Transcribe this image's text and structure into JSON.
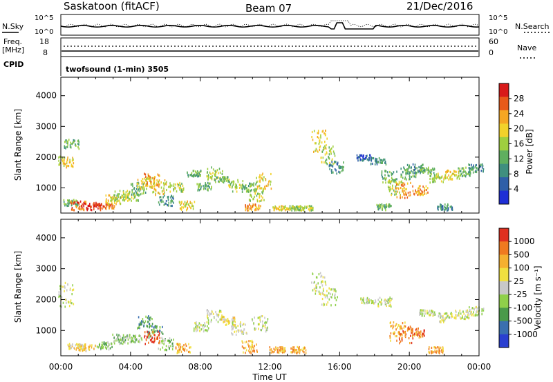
{
  "header": {
    "station": "Saskatoon (fitACF)",
    "beam": "Beam 07",
    "date": "21/Dec/2016"
  },
  "noise_panel": {
    "left_label": "N.Sky",
    "right_label": "N.Search",
    "left_ticks": [
      "10^5",
      "10^0"
    ],
    "right_ticks": [
      "10^5",
      "10^0"
    ]
  },
  "freq_panel": {
    "left_label_line1": "Freq.",
    "left_label_line2": "[MHz]",
    "left_ticks": [
      "18",
      "8"
    ],
    "right_label": "Nave",
    "right_ticks": [
      "60",
      "0"
    ],
    "cpid_label": "CPID"
  },
  "cpid_text": "twofsound (1-min) 3505",
  "colors": {
    "power_scale": [
      "#1f2fd6",
      "#2f5fa8",
      "#3f8f7f",
      "#5faf5f",
      "#9fcf3f",
      "#f2d22a",
      "#f5a623",
      "#e85a1a",
      "#d81a1a"
    ],
    "velocity_scale": [
      "#2a3fd0",
      "#3a6fb0",
      "#4a9a4a",
      "#8fd04a",
      "#c8c8c8",
      "#f0e040",
      "#f5b030",
      "#f07a20",
      "#e03020"
    ]
  },
  "chart_data": [
    {
      "type": "heatmap",
      "panel": "power",
      "xlabel": "",
      "ylabel": "Slant Range [km]",
      "xlim_hours": [
        0,
        24
      ],
      "ylim": [
        180,
        4600
      ],
      "y_ticks": [
        1000,
        2000,
        3000,
        4000
      ],
      "colorbar_label": "Power [dB]",
      "colorbar_ticks": [
        "28",
        "24",
        "20",
        "16",
        "12",
        "8",
        "4"
      ],
      "cells": [
        [
          0.3,
          1700,
          2050,
          5
        ],
        [
          0.6,
          2300,
          2600,
          3
        ],
        [
          0.5,
          450,
          650,
          3
        ],
        [
          1.0,
          300,
          600,
          7
        ],
        [
          1.8,
          300,
          550,
          8
        ],
        [
          2.6,
          350,
          520,
          7
        ],
        [
          3.0,
          500,
          800,
          5
        ],
        [
          3.5,
          600,
          950,
          4
        ],
        [
          4.0,
          600,
          900,
          4
        ],
        [
          4.4,
          800,
          1200,
          3
        ],
        [
          4.8,
          1000,
          1400,
          5
        ],
        [
          5.2,
          1100,
          1500,
          6
        ],
        [
          5.6,
          800,
          1300,
          5
        ],
        [
          6.0,
          400,
          800,
          2
        ],
        [
          6.6,
          900,
          1200,
          4
        ],
        [
          7.2,
          300,
          600,
          5
        ],
        [
          7.6,
          1400,
          1600,
          3
        ],
        [
          8.2,
          950,
          1200,
          3
        ],
        [
          8.8,
          1300,
          1700,
          4
        ],
        [
          9.2,
          1200,
          1400,
          3
        ],
        [
          10.0,
          900,
          1300,
          4
        ],
        [
          10.8,
          900,
          1200,
          3
        ],
        [
          11.2,
          600,
          1000,
          4
        ],
        [
          11.6,
          1000,
          1500,
          5
        ],
        [
          11.0,
          300,
          500,
          6
        ],
        [
          12.6,
          300,
          450,
          5
        ],
        [
          13.5,
          300,
          450,
          4
        ],
        [
          14.0,
          300,
          450,
          4
        ],
        [
          14.8,
          2200,
          2900,
          5
        ],
        [
          15.3,
          1800,
          2400,
          4
        ],
        [
          15.8,
          1500,
          1900,
          2
        ],
        [
          17.4,
          1900,
          2100,
          1
        ],
        [
          18.2,
          1800,
          2000,
          2
        ],
        [
          18.8,
          1200,
          1600,
          3
        ],
        [
          19.2,
          800,
          1300,
          4
        ],
        [
          19.6,
          700,
          1200,
          6
        ],
        [
          19.9,
          1300,
          1700,
          3
        ],
        [
          20.3,
          1500,
          1800,
          2
        ],
        [
          20.6,
          800,
          1100,
          6
        ],
        [
          21.0,
          1500,
          1700,
          3
        ],
        [
          21.6,
          1200,
          1500,
          4
        ],
        [
          22.4,
          1300,
          1600,
          5
        ],
        [
          23.2,
          1400,
          1700,
          3
        ],
        [
          23.8,
          1500,
          1800,
          2
        ],
        [
          18.5,
          300,
          500,
          3
        ],
        [
          22.0,
          300,
          500,
          2
        ]
      ]
    },
    {
      "type": "heatmap",
      "panel": "velocity",
      "xlabel": "Time UT",
      "ylabel": "Slant Range [km]",
      "xlim_hours": [
        0,
        24
      ],
      "ylim": [
        180,
        4600
      ],
      "x_ticks": [
        "00:00",
        "04:00",
        "08:00",
        "12:00",
        "16:00",
        "20:00",
        "00:00"
      ],
      "y_ticks": [
        1000,
        2000,
        3000,
        4000
      ],
      "colorbar_label": "Velocity [m s⁻¹]",
      "colorbar_ticks": [
        "1000",
        "500",
        "100",
        "25",
        "-25",
        "-100",
        "-500",
        "-1000"
      ],
      "cells": [
        [
          0.3,
          1800,
          2600,
          4
        ],
        [
          0.8,
          400,
          600,
          5
        ],
        [
          1.5,
          350,
          600,
          5
        ],
        [
          2.5,
          400,
          650,
          3
        ],
        [
          3.4,
          600,
          900,
          3
        ],
        [
          4.2,
          650,
          900,
          3
        ],
        [
          4.8,
          1100,
          1500,
          2
        ],
        [
          5.4,
          800,
          1200,
          2
        ],
        [
          6.0,
          400,
          800,
          3
        ],
        [
          7.0,
          300,
          600,
          6
        ],
        [
          8.0,
          1000,
          1300,
          4
        ],
        [
          8.8,
          1300,
          1700,
          4
        ],
        [
          9.6,
          1200,
          1500,
          5
        ],
        [
          10.2,
          900,
          1300,
          4
        ],
        [
          10.8,
          300,
          700,
          6
        ],
        [
          11.4,
          1000,
          1500,
          4
        ],
        [
          12.4,
          300,
          500,
          6
        ],
        [
          13.6,
          300,
          500,
          6
        ],
        [
          14.8,
          2200,
          2900,
          4
        ],
        [
          15.4,
          1800,
          2400,
          4
        ],
        [
          17.6,
          1900,
          2100,
          4
        ],
        [
          18.6,
          1800,
          2100,
          4
        ],
        [
          19.3,
          700,
          1300,
          6
        ],
        [
          19.8,
          600,
          1200,
          7
        ],
        [
          20.4,
          800,
          1100,
          7
        ],
        [
          21.0,
          1500,
          1700,
          4
        ],
        [
          22.0,
          1300,
          1600,
          4
        ],
        [
          23.0,
          1400,
          1700,
          4
        ],
        [
          23.8,
          1500,
          1800,
          4
        ],
        [
          21.5,
          300,
          500,
          6
        ],
        [
          5.2,
          600,
          1000,
          8
        ]
      ]
    }
  ]
}
